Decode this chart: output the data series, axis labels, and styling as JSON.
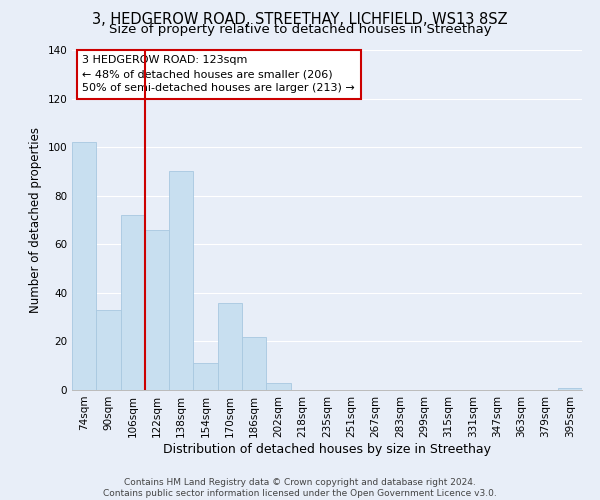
{
  "title": "3, HEDGEROW ROAD, STREETHAY, LICHFIELD, WS13 8SZ",
  "subtitle": "Size of property relative to detached houses in Streethay",
  "xlabel": "Distribution of detached houses by size in Streethay",
  "ylabel": "Number of detached properties",
  "bar_labels": [
    "74sqm",
    "90sqm",
    "106sqm",
    "122sqm",
    "138sqm",
    "154sqm",
    "170sqm",
    "186sqm",
    "202sqm",
    "218sqm",
    "235sqm",
    "251sqm",
    "267sqm",
    "283sqm",
    "299sqm",
    "315sqm",
    "331sqm",
    "347sqm",
    "363sqm",
    "379sqm",
    "395sqm"
  ],
  "bar_values": [
    102,
    33,
    72,
    66,
    90,
    11,
    36,
    22,
    3,
    0,
    0,
    0,
    0,
    0,
    0,
    0,
    0,
    0,
    0,
    0,
    1
  ],
  "bar_color": "#c8dff0",
  "bar_edge_color": "#a8c8e0",
  "ylim": [
    0,
    140
  ],
  "yticks": [
    0,
    20,
    40,
    60,
    80,
    100,
    120,
    140
  ],
  "vline_color": "#cc0000",
  "annotation_box_text": "3 HEDGEROW ROAD: 123sqm\n← 48% of detached houses are smaller (206)\n50% of semi-detached houses are larger (213) →",
  "box_edge_color": "#cc0000",
  "footer_line1": "Contains HM Land Registry data © Crown copyright and database right 2024.",
  "footer_line2": "Contains public sector information licensed under the Open Government Licence v3.0.",
  "background_color": "#e8eef8",
  "grid_color": "#ffffff",
  "title_fontsize": 10.5,
  "subtitle_fontsize": 9.5,
  "xlabel_fontsize": 9,
  "ylabel_fontsize": 8.5,
  "tick_fontsize": 7.5,
  "footer_fontsize": 6.5
}
